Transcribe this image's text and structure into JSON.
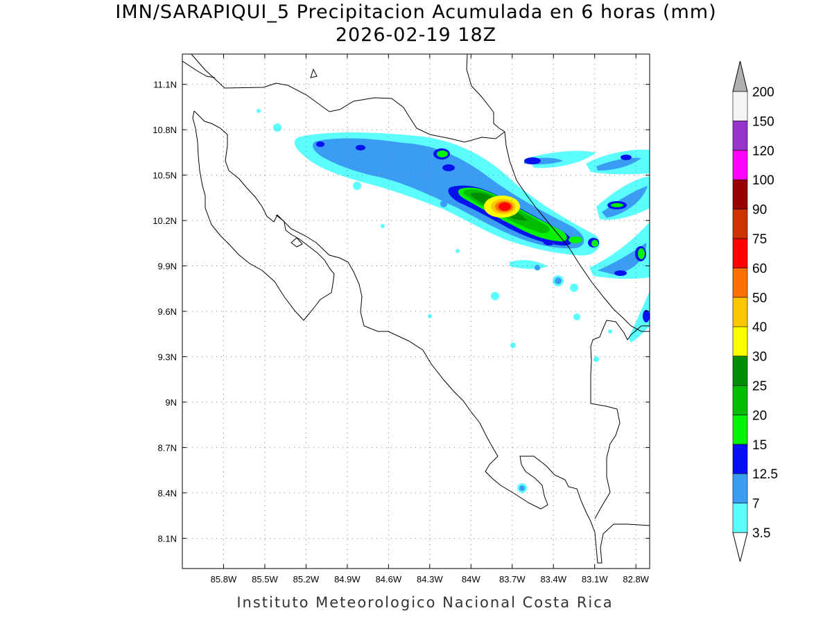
{
  "title": "IMN/SARAPIQUI_5 Precipitacion Acumulada en 6 horas (mm)",
  "subtitle": "2026-02-19 18Z",
  "footer": "Instituto Meteorologico Nacional Costa Rica",
  "map": {
    "lon_range": [
      -86.1,
      -82.7
    ],
    "lat_range": [
      7.9,
      11.3
    ],
    "lon_ticks": [
      "85.8W",
      "85.5W",
      "85.2W",
      "84.9W",
      "84.6W",
      "84.3W",
      "84W",
      "83.7W",
      "83.4W",
      "83.1W",
      "82.8W"
    ],
    "lon_values": [
      -85.8,
      -85.5,
      -85.2,
      -84.9,
      -84.6,
      -84.3,
      -84.0,
      -83.7,
      -83.4,
      -83.1,
      -82.8
    ],
    "lat_ticks": [
      "8.1N",
      "8.4N",
      "8.7N",
      "9N",
      "9.3N",
      "9.6N",
      "9.9N",
      "10.2N",
      "10.5N",
      "10.8N",
      "11.1N"
    ],
    "lat_values": [
      8.1,
      8.4,
      8.7,
      9.0,
      9.3,
      9.6,
      9.9,
      10.2,
      10.5,
      10.8,
      11.1
    ],
    "grid": true
  },
  "colorbar": {
    "labels": [
      "3.5",
      "7",
      "12.5",
      "15",
      "20",
      "25",
      "30",
      "40",
      "50",
      "60",
      "75",
      "90",
      "100",
      "120",
      "150",
      "200"
    ],
    "colors": [
      "#5cfdfd",
      "#3a9cf2",
      "#0511ef",
      "#05f205",
      "#02bd02",
      "#028e02",
      "#fdfd02",
      "#fdc602",
      "#fd7002",
      "#fd0202",
      "#cc3300",
      "#9a0000",
      "#fd02fd",
      "#9833cc",
      "#f5f5f5"
    ],
    "over_color": "#b0b0b0",
    "under_color": "#ffffff"
  }
}
